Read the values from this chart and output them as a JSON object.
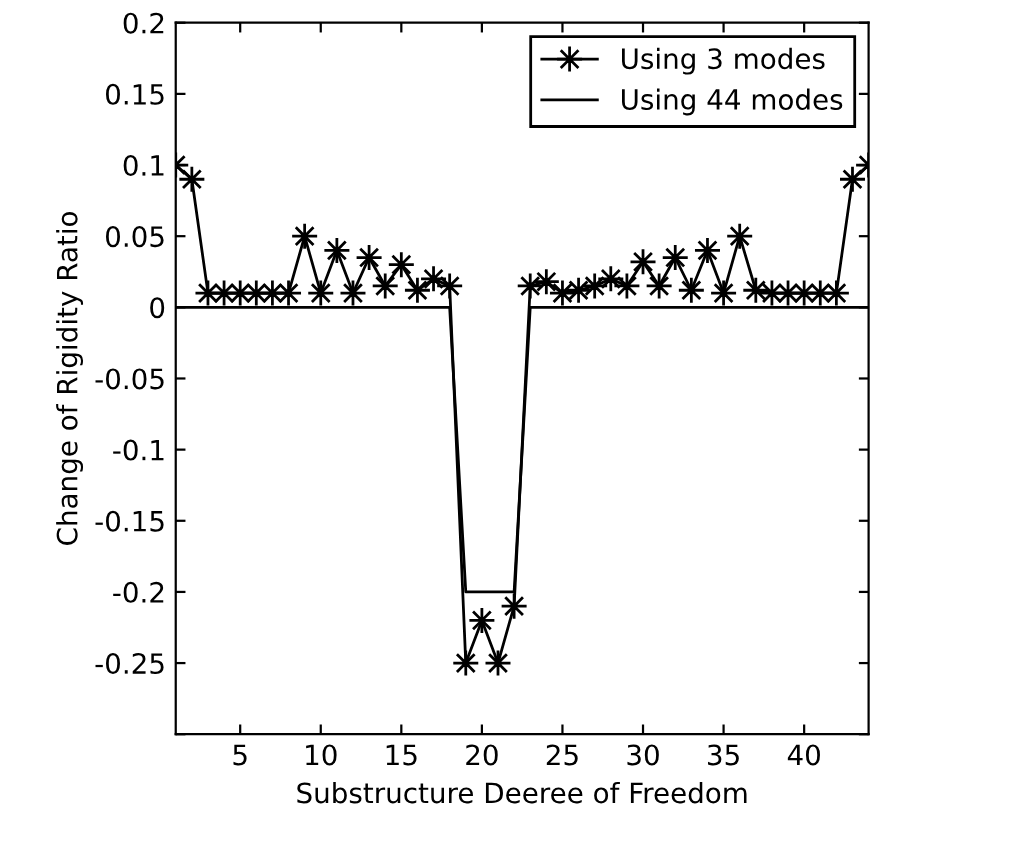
{
  "chart_data": {
    "type": "line",
    "xlabel": "Substructure Deeree of Freedom",
    "ylabel": "Change of Rigidity Ratio",
    "x": [
      1,
      2,
      3,
      4,
      5,
      6,
      7,
      8,
      9,
      10,
      11,
      12,
      13,
      14,
      15,
      16,
      17,
      18,
      19,
      20,
      21,
      22,
      23,
      24,
      25,
      26,
      27,
      28,
      29,
      30,
      31,
      32,
      33,
      34,
      35,
      36,
      37,
      38,
      39,
      40,
      41,
      42,
      43,
      44
    ],
    "series": [
      {
        "name": "Using 3 modes",
        "color": "#000000",
        "marker": "star",
        "values": [
          0.1,
          0.09,
          0.01,
          0.01,
          0.01,
          0.01,
          0.01,
          0.01,
          0.05,
          0.01,
          0.04,
          0.01,
          0.035,
          0.015,
          0.03,
          0.012,
          0.02,
          0.015,
          -0.25,
          -0.22,
          -0.25,
          -0.21,
          0.015,
          0.018,
          0.01,
          0.012,
          0.015,
          0.02,
          0.015,
          0.032,
          0.015,
          0.035,
          0.012,
          0.04,
          0.01,
          0.05,
          0.012,
          0.01,
          0.01,
          0.01,
          0.01,
          0.01,
          0.09,
          0.1
        ]
      },
      {
        "name": "Using 44 modes",
        "color": "#000000",
        "marker": "none",
        "values": [
          0,
          0,
          0,
          0,
          0,
          0,
          0,
          0,
          0,
          0,
          0,
          0,
          0,
          0,
          0,
          0,
          0,
          0,
          -0.2,
          -0.2,
          -0.2,
          -0.2,
          0,
          0,
          0,
          0,
          0,
          0,
          0,
          0,
          0,
          0,
          0,
          0,
          0,
          0,
          0,
          0,
          0,
          0,
          0,
          0,
          0,
          0
        ]
      }
    ],
    "xlim": [
      1,
      44
    ],
    "xticks": [
      5,
      10,
      15,
      20,
      25,
      30,
      35,
      40
    ],
    "ylim": [
      -0.3,
      0.2
    ],
    "yticks": [
      0.2,
      0.15,
      0.1,
      0.05,
      0,
      -0.05,
      -0.1,
      -0.15,
      -0.2,
      -0.25,
      {
        "value": -0.3,
        "label": null
      }
    ],
    "grid": false,
    "legend": "top right",
    "line_style": "solid"
  }
}
